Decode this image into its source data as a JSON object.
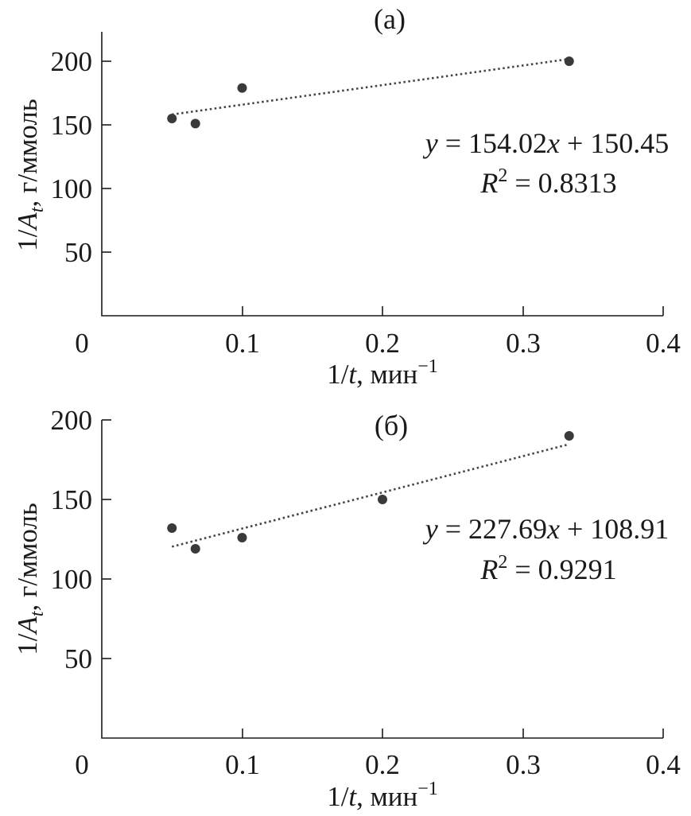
{
  "chart_data": [
    {
      "type": "scatter",
      "panel_label": "(а)",
      "xlabel": {
        "text": "1/",
        "var": "t",
        "unit": ", мин",
        "exp": "−1"
      },
      "ylabel": {
        "text": "1/",
        "var": "A",
        "sub": "t",
        "unit": ", г/ммоль"
      },
      "xlim": [
        0,
        0.4
      ],
      "ylim": [
        0,
        200
      ],
      "xticks": [
        "0",
        "0.1",
        "0.2",
        "0.3",
        "0.4"
      ],
      "yticks": [
        "50",
        "100",
        "150",
        "200"
      ],
      "points": [
        {
          "x": 0.05,
          "y": 155
        },
        {
          "x": 0.0667,
          "y": 151
        },
        {
          "x": 0.1,
          "y": 179
        },
        {
          "x": 0.333,
          "y": 200
        }
      ],
      "trendline": {
        "slope": 154.02,
        "intercept": 150.45,
        "x_from": 0.05,
        "x_to": 0.333
      },
      "equation": {
        "y": "y",
        "rest": " = 154.02",
        "x": "x",
        "tail": " + 150.45"
      },
      "r2": {
        "R": "R",
        "exp": "2",
        "rest": " = 0.8313"
      }
    },
    {
      "type": "scatter",
      "panel_label": "(б)",
      "xlabel": {
        "text": "1/",
        "var": "t",
        "unit": ", мин",
        "exp": "−1"
      },
      "ylabel": {
        "text": "1/",
        "var": "A",
        "sub": "t",
        "unit": ", г/ммоль"
      },
      "xlim": [
        0,
        0.4
      ],
      "ylim": [
        0,
        200
      ],
      "xticks": [
        "0",
        "0.1",
        "0.2",
        "0.3",
        "0.4"
      ],
      "yticks": [
        "50",
        "100",
        "150",
        "200"
      ],
      "points": [
        {
          "x": 0.05,
          "y": 132
        },
        {
          "x": 0.0667,
          "y": 119
        },
        {
          "x": 0.1,
          "y": 126
        },
        {
          "x": 0.2,
          "y": 150
        },
        {
          "x": 0.333,
          "y": 190
        }
      ],
      "trendline": {
        "slope": 227.69,
        "intercept": 108.91,
        "x_from": 0.05,
        "x_to": 0.333
      },
      "equation": {
        "y": "y",
        "rest": " = 227.69",
        "x": "x",
        "tail": " + 108.91"
      },
      "r2": {
        "R": "R",
        "exp": "2",
        "rest": " = 0.9291"
      }
    }
  ]
}
